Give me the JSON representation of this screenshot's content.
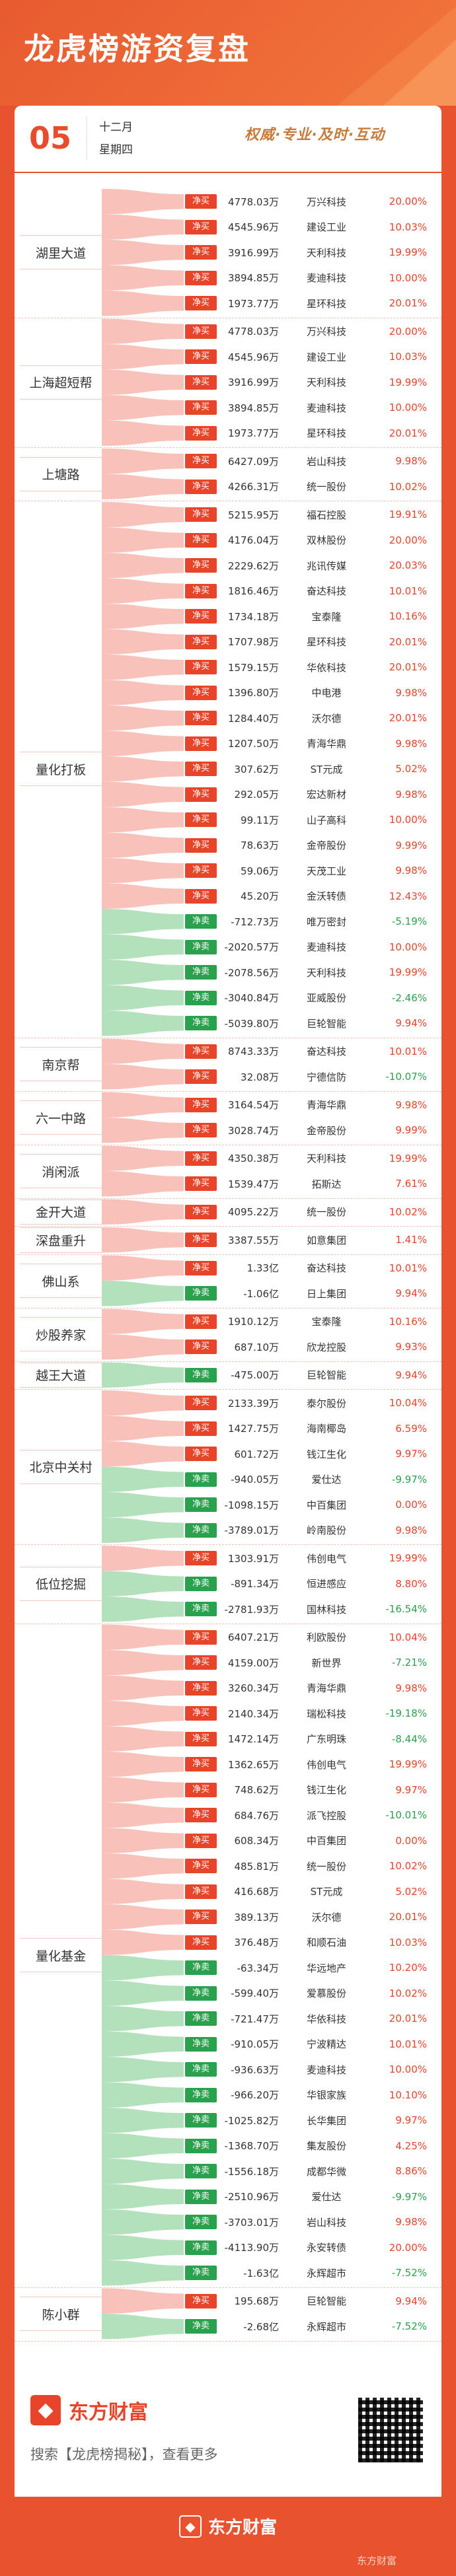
{
  "header": {
    "title": "龙虎榜游资复盘"
  },
  "date": {
    "day": "05",
    "month": "十二月",
    "weekday": "星期四"
  },
  "slogan": "权威·专业·及时·互动",
  "groups": [
    {
      "seat": "湖里大道",
      "rows": [
        {
          "tag": "净买",
          "side": "buy",
          "amount": "4778.03万",
          "stock": "万兴科技",
          "pct": "20.00%"
        },
        {
          "tag": "净买",
          "side": "buy",
          "amount": "4545.96万",
          "stock": "建设工业",
          "pct": "10.03%"
        },
        {
          "tag": "净买",
          "side": "buy",
          "amount": "3916.99万",
          "stock": "天利科技",
          "pct": "19.99%"
        },
        {
          "tag": "净买",
          "side": "buy",
          "amount": "3894.85万",
          "stock": "麦迪科技",
          "pct": "10.00%"
        },
        {
          "tag": "净买",
          "side": "buy",
          "amount": "1973.77万",
          "stock": "星环科技",
          "pct": "20.01%"
        }
      ]
    },
    {
      "seat": "上海超短帮",
      "rows": [
        {
          "tag": "净买",
          "side": "buy",
          "amount": "4778.03万",
          "stock": "万兴科技",
          "pct": "20.00%"
        },
        {
          "tag": "净买",
          "side": "buy",
          "amount": "4545.96万",
          "stock": "建设工业",
          "pct": "10.03%"
        },
        {
          "tag": "净买",
          "side": "buy",
          "amount": "3916.99万",
          "stock": "天利科技",
          "pct": "19.99%"
        },
        {
          "tag": "净买",
          "side": "buy",
          "amount": "3894.85万",
          "stock": "麦迪科技",
          "pct": "10.00%"
        },
        {
          "tag": "净买",
          "side": "buy",
          "amount": "1973.77万",
          "stock": "星环科技",
          "pct": "20.01%"
        }
      ]
    },
    {
      "seat": "上塘路",
      "rows": [
        {
          "tag": "净买",
          "side": "buy",
          "amount": "6427.09万",
          "stock": "岩山科技",
          "pct": "9.98%"
        },
        {
          "tag": "净买",
          "side": "buy",
          "amount": "4266.31万",
          "stock": "统一股份",
          "pct": "10.02%"
        }
      ]
    },
    {
      "seat": "量化打板",
      "rows": [
        {
          "tag": "净买",
          "side": "buy",
          "amount": "5215.95万",
          "stock": "福石控股",
          "pct": "19.91%"
        },
        {
          "tag": "净买",
          "side": "buy",
          "amount": "4176.04万",
          "stock": "双林股份",
          "pct": "20.00%"
        },
        {
          "tag": "净买",
          "side": "buy",
          "amount": "2229.62万",
          "stock": "兆讯传媒",
          "pct": "20.03%"
        },
        {
          "tag": "净买",
          "side": "buy",
          "amount": "1816.46万",
          "stock": "奋达科技",
          "pct": "10.01%"
        },
        {
          "tag": "净买",
          "side": "buy",
          "amount": "1734.18万",
          "stock": "宝泰隆",
          "pct": "10.16%"
        },
        {
          "tag": "净买",
          "side": "buy",
          "amount": "1707.98万",
          "stock": "星环科技",
          "pct": "20.01%"
        },
        {
          "tag": "净买",
          "side": "buy",
          "amount": "1579.15万",
          "stock": "华依科技",
          "pct": "20.01%"
        },
        {
          "tag": "净买",
          "side": "buy",
          "amount": "1396.80万",
          "stock": "中电港",
          "pct": "9.98%"
        },
        {
          "tag": "净买",
          "side": "buy",
          "amount": "1284.40万",
          "stock": "沃尔德",
          "pct": "20.01%"
        },
        {
          "tag": "净买",
          "side": "buy",
          "amount": "1207.50万",
          "stock": "青海华鼎",
          "pct": "9.98%"
        },
        {
          "tag": "净买",
          "side": "buy",
          "amount": "307.62万",
          "stock": "ST元成",
          "pct": "5.02%"
        },
        {
          "tag": "净买",
          "side": "buy",
          "amount": "292.05万",
          "stock": "宏达新材",
          "pct": "9.98%"
        },
        {
          "tag": "净买",
          "side": "buy",
          "amount": "99.11万",
          "stock": "山子高科",
          "pct": "10.00%"
        },
        {
          "tag": "净买",
          "side": "buy",
          "amount": "78.63万",
          "stock": "金帝股份",
          "pct": "9.99%"
        },
        {
          "tag": "净买",
          "side": "buy",
          "amount": "59.06万",
          "stock": "天茂工业",
          "pct": "9.98%"
        },
        {
          "tag": "净买",
          "side": "buy",
          "amount": "45.20万",
          "stock": "金沃转债",
          "pct": "12.43%"
        },
        {
          "tag": "净卖",
          "side": "sell",
          "amount": "-712.73万",
          "stock": "唯万密封",
          "pct": "-5.19%"
        },
        {
          "tag": "净卖",
          "side": "sell",
          "amount": "-2020.57万",
          "stock": "麦迪科技",
          "pct": "10.00%"
        },
        {
          "tag": "净卖",
          "side": "sell",
          "amount": "-2078.56万",
          "stock": "天利科技",
          "pct": "19.99%"
        },
        {
          "tag": "净卖",
          "side": "sell",
          "amount": "-3040.84万",
          "stock": "亚威股份",
          "pct": "-2.46%"
        },
        {
          "tag": "净卖",
          "side": "sell",
          "amount": "-5039.80万",
          "stock": "巨轮智能",
          "pct": "9.94%"
        }
      ]
    },
    {
      "seat": "南京帮",
      "rows": [
        {
          "tag": "净买",
          "side": "buy",
          "amount": "8743.33万",
          "stock": "奋达科技",
          "pct": "10.01%"
        },
        {
          "tag": "净买",
          "side": "buy",
          "amount": "32.08万",
          "stock": "宁德信防",
          "pct": "-10.07%"
        }
      ]
    },
    {
      "seat": "六一中路",
      "rows": [
        {
          "tag": "净买",
          "side": "buy",
          "amount": "3164.54万",
          "stock": "青海华鼎",
          "pct": "9.98%"
        },
        {
          "tag": "净买",
          "side": "buy",
          "amount": "3028.74万",
          "stock": "金帝股份",
          "pct": "9.99%"
        }
      ]
    },
    {
      "seat": "消闲派",
      "rows": [
        {
          "tag": "净买",
          "side": "buy",
          "amount": "4350.38万",
          "stock": "天利科技",
          "pct": "19.99%"
        },
        {
          "tag": "净买",
          "side": "buy",
          "amount": "1539.47万",
          "stock": "拓斯达",
          "pct": "7.61%"
        }
      ]
    },
    {
      "seat": "金开大道",
      "rows": [
        {
          "tag": "净买",
          "side": "buy",
          "amount": "4095.22万",
          "stock": "统一股份",
          "pct": "10.02%"
        }
      ]
    },
    {
      "seat": "深盘重升",
      "rows": [
        {
          "tag": "净买",
          "side": "buy",
          "amount": "3387.55万",
          "stock": "如意集团",
          "pct": "1.41%"
        }
      ]
    },
    {
      "seat": "佛山系",
      "rows": [
        {
          "tag": "净买",
          "side": "buy",
          "amount": "1.33亿",
          "stock": "奋达科技",
          "pct": "10.01%"
        },
        {
          "tag": "净卖",
          "side": "sell",
          "amount": "-1.06亿",
          "stock": "日上集团",
          "pct": "9.94%"
        }
      ]
    },
    {
      "seat": "炒股养家",
      "rows": [
        {
          "tag": "净买",
          "side": "buy",
          "amount": "1910.12万",
          "stock": "宝泰隆",
          "pct": "10.16%"
        },
        {
          "tag": "净买",
          "side": "buy",
          "amount": "687.10万",
          "stock": "欣龙控股",
          "pct": "9.93%"
        }
      ]
    },
    {
      "seat": "越王大道",
      "rows": [
        {
          "tag": "净卖",
          "side": "sell",
          "amount": "-475.00万",
          "stock": "巨轮智能",
          "pct": "9.94%"
        }
      ]
    },
    {
      "seat": "北京中关村",
      "rows": [
        {
          "tag": "净买",
          "side": "buy",
          "amount": "2133.39万",
          "stock": "泰尔股份",
          "pct": "10.04%"
        },
        {
          "tag": "净买",
          "side": "buy",
          "amount": "1427.75万",
          "stock": "海南椰岛",
          "pct": "6.59%"
        },
        {
          "tag": "净买",
          "side": "buy",
          "amount": "601.72万",
          "stock": "钱江生化",
          "pct": "9.97%"
        },
        {
          "tag": "净卖",
          "side": "sell",
          "amount": "-940.05万",
          "stock": "爱仕达",
          "pct": "-9.97%"
        },
        {
          "tag": "净卖",
          "side": "sell",
          "amount": "-1098.15万",
          "stock": "中百集团",
          "pct": "0.00%"
        },
        {
          "tag": "净卖",
          "side": "sell",
          "amount": "-3789.01万",
          "stock": "岭南股份",
          "pct": "9.98%"
        }
      ]
    },
    {
      "seat": "低位挖掘",
      "rows": [
        {
          "tag": "净买",
          "side": "buy",
          "amount": "1303.91万",
          "stock": "伟创电气",
          "pct": "19.99%"
        },
        {
          "tag": "净卖",
          "side": "sell",
          "amount": "-891.34万",
          "stock": "恒进感应",
          "pct": "8.80%"
        },
        {
          "tag": "净卖",
          "side": "sell",
          "amount": "-2781.93万",
          "stock": "国林科技",
          "pct": "-16.54%"
        }
      ]
    },
    {
      "seat": "量化基金",
      "rows": [
        {
          "tag": "净买",
          "side": "buy",
          "amount": "6407.21万",
          "stock": "利欧股份",
          "pct": "10.04%"
        },
        {
          "tag": "净买",
          "side": "buy",
          "amount": "4159.00万",
          "stock": "新世界",
          "pct": "-7.21%"
        },
        {
          "tag": "净买",
          "side": "buy",
          "amount": "3260.34万",
          "stock": "青海华鼎",
          "pct": "9.98%"
        },
        {
          "tag": "净买",
          "side": "buy",
          "amount": "2140.34万",
          "stock": "瑞松科技",
          "pct": "-19.18%"
        },
        {
          "tag": "净买",
          "side": "buy",
          "amount": "1472.14万",
          "stock": "广东明珠",
          "pct": "-8.44%"
        },
        {
          "tag": "净买",
          "side": "buy",
          "amount": "1362.65万",
          "stock": "伟创电气",
          "pct": "19.99%"
        },
        {
          "tag": "净买",
          "side": "buy",
          "amount": "748.62万",
          "stock": "钱江生化",
          "pct": "9.97%"
        },
        {
          "tag": "净买",
          "side": "buy",
          "amount": "684.76万",
          "stock": "派飞控股",
          "pct": "-10.01%"
        },
        {
          "tag": "净买",
          "side": "buy",
          "amount": "608.34万",
          "stock": "中百集团",
          "pct": "0.00%"
        },
        {
          "tag": "净买",
          "side": "buy",
          "amount": "485.81万",
          "stock": "统一股份",
          "pct": "10.02%"
        },
        {
          "tag": "净买",
          "side": "buy",
          "amount": "416.68万",
          "stock": "ST元成",
          "pct": "5.02%"
        },
        {
          "tag": "净买",
          "side": "buy",
          "amount": "389.13万",
          "stock": "沃尔德",
          "pct": "20.01%"
        },
        {
          "tag": "净买",
          "side": "buy",
          "amount": "376.48万",
          "stock": "和顺石油",
          "pct": "10.03%"
        },
        {
          "tag": "净卖",
          "side": "sell",
          "amount": "-63.34万",
          "stock": "华远地产",
          "pct": "10.20%"
        },
        {
          "tag": "净卖",
          "side": "sell",
          "amount": "-599.40万",
          "stock": "爱慕股份",
          "pct": "10.02%"
        },
        {
          "tag": "净卖",
          "side": "sell",
          "amount": "-721.47万",
          "stock": "华依科技",
          "pct": "20.01%"
        },
        {
          "tag": "净卖",
          "side": "sell",
          "amount": "-910.05万",
          "stock": "宁波精达",
          "pct": "10.01%"
        },
        {
          "tag": "净卖",
          "side": "sell",
          "amount": "-936.63万",
          "stock": "麦迪科技",
          "pct": "10.00%"
        },
        {
          "tag": "净卖",
          "side": "sell",
          "amount": "-966.20万",
          "stock": "华银家族",
          "pct": "10.10%"
        },
        {
          "tag": "净卖",
          "side": "sell",
          "amount": "-1025.82万",
          "stock": "长华集团",
          "pct": "9.97%"
        },
        {
          "tag": "净卖",
          "side": "sell",
          "amount": "-1368.70万",
          "stock": "集友股份",
          "pct": "4.25%"
        },
        {
          "tag": "净卖",
          "side": "sell",
          "amount": "-1556.18万",
          "stock": "成都华微",
          "pct": "8.86%"
        },
        {
          "tag": "净卖",
          "side": "sell",
          "amount": "-2510.96万",
          "stock": "爱仕达",
          "pct": "-9.97%"
        },
        {
          "tag": "净卖",
          "side": "sell",
          "amount": "-3703.01万",
          "stock": "岩山科技",
          "pct": "9.98%"
        },
        {
          "tag": "净卖",
          "side": "sell",
          "amount": "-4113.90万",
          "stock": "永安转债",
          "pct": "20.00%"
        },
        {
          "tag": "净卖",
          "side": "sell",
          "amount": "-1.63亿",
          "stock": "永辉超市",
          "pct": "-7.52%"
        }
      ]
    },
    {
      "seat": "陈小群",
      "rows": [
        {
          "tag": "净买",
          "side": "buy",
          "amount": "195.68万",
          "stock": "巨轮智能",
          "pct": "9.94%"
        },
        {
          "tag": "净卖",
          "side": "sell",
          "amount": "-2.68亿",
          "stock": "永辉超市",
          "pct": "-7.52%"
        }
      ]
    }
  ],
  "footer": {
    "logo": "东方财富",
    "search": "搜索【龙虎榜揭秘】，查看更多",
    "bottom_logo": "东方财富",
    "watermark": "东方财富"
  },
  "colors": {
    "buy": "#e8442a",
    "sell": "#2aa14c",
    "brand": "#e8522f"
  }
}
